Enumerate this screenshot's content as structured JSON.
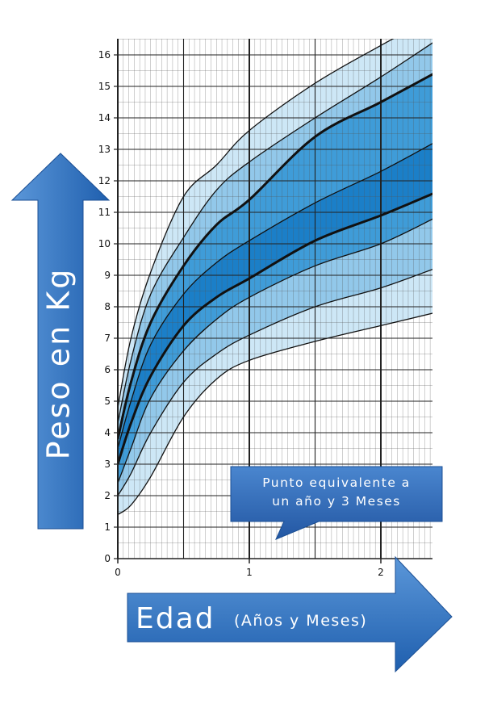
{
  "chart_data": {
    "type": "area",
    "xticks": [
      "0",
      "1",
      "2"
    ],
    "yticks": [
      "0",
      "1",
      "2",
      "3",
      "4",
      "5",
      "6",
      "7",
      "8",
      "9",
      "10",
      "11",
      "12",
      "13",
      "14",
      "15",
      "16"
    ],
    "xlim": [
      0,
      2.4
    ],
    "ylim": [
      0,
      16.5
    ],
    "grid": true,
    "series": [
      {
        "x": [
          0,
          0.1,
          0.25,
          0.5,
          0.75,
          1,
          1.5,
          2,
          2.4
        ],
        "y": [
          1.4,
          1.7,
          2.6,
          4.5,
          5.7,
          6.3,
          6.9,
          7.4,
          7.8
        ]
      },
      {
        "x": [
          0,
          0.1,
          0.25,
          0.5,
          0.75,
          1,
          1.5,
          2,
          2.4
        ],
        "y": [
          2.0,
          2.7,
          4.0,
          5.6,
          6.5,
          7.1,
          8.0,
          8.6,
          9.2
        ]
      },
      {
        "x": [
          0,
          0.1,
          0.25,
          0.5,
          0.75,
          1,
          1.5,
          2,
          2.4
        ],
        "y": [
          2.4,
          3.5,
          5.1,
          6.6,
          7.6,
          8.3,
          9.3,
          10.0,
          10.8
        ]
      },
      {
        "x": [
          0,
          0.1,
          0.25,
          0.5,
          0.75,
          1,
          1.5,
          2,
          2.4
        ],
        "y": [
          3.0,
          4.3,
          5.8,
          7.4,
          8.3,
          8.9,
          10.1,
          10.9,
          11.6
        ]
      },
      {
        "x": [
          0,
          0.1,
          0.25,
          0.5,
          0.75,
          1,
          1.5,
          2,
          2.4
        ],
        "y": [
          3.5,
          5.0,
          6.8,
          8.4,
          9.4,
          10.1,
          11.3,
          12.3,
          13.2
        ]
      },
      {
        "x": [
          0,
          0.1,
          0.25,
          0.5,
          0.75,
          1,
          1.5,
          2,
          2.4
        ],
        "y": [
          3.8,
          5.6,
          7.5,
          9.3,
          10.6,
          11.4,
          13.4,
          14.5,
          15.4
        ]
      },
      {
        "x": [
          0,
          0.1,
          0.25,
          0.5,
          0.75,
          1,
          1.5,
          2,
          2.4
        ],
        "y": [
          4.3,
          6.3,
          8.4,
          10.2,
          11.7,
          12.6,
          14.0,
          15.3,
          16.4
        ]
      },
      {
        "x": [
          0,
          0.1,
          0.25,
          0.5,
          0.75,
          1,
          1.5,
          2,
          2.4
        ],
        "y": [
          4.8,
          7.0,
          9.1,
          11.5,
          12.5,
          13.6,
          15.1,
          16.3,
          17.2
        ]
      }
    ],
    "band_colors": [
      "#cde7f6",
      "#92c8ea",
      "#3f9cd8",
      "#1b7fc8",
      "#3f9cd8",
      "#92c8ea",
      "#cde7f6"
    ],
    "line_color": "#111111"
  },
  "y_arrow": {
    "label": "Peso en Kg",
    "color": "#2f74c4"
  },
  "x_arrow": {
    "label_main": "Edad",
    "label_sub": "(Años y Meses)",
    "color": "#2f74c4"
  },
  "callout": {
    "line1": "Punto equivalente a",
    "line2": "un año y 3 Meses",
    "color": "#2c64b0"
  }
}
